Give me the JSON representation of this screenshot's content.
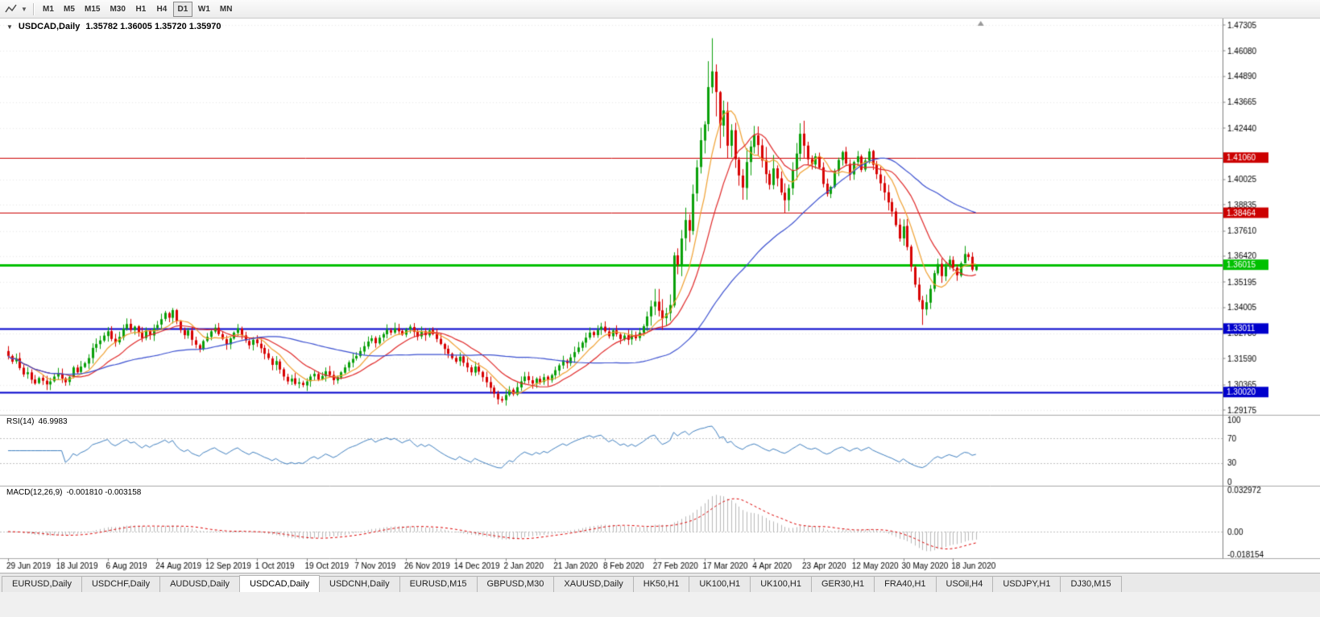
{
  "toolbar": {
    "timeframes": [
      {
        "label": "M1",
        "active": false
      },
      {
        "label": "M5",
        "active": false
      },
      {
        "label": "M15",
        "active": false
      },
      {
        "label": "M30",
        "active": false
      },
      {
        "label": "H1",
        "active": false
      },
      {
        "label": "H4",
        "active": false
      },
      {
        "label": "D1",
        "active": true
      },
      {
        "label": "W1",
        "active": false
      },
      {
        "label": "MN",
        "active": false
      }
    ]
  },
  "chart": {
    "symbol_period": "USDCAD,Daily",
    "ohlc_text": "1.35782 1.36005 1.35720 1.35970"
  },
  "rsi": {
    "name": "RSI(14)",
    "value": "46.9983"
  },
  "macd": {
    "name": "MACD(12,26,9)",
    "values": "-0.001810 -0.003158"
  },
  "tabs": [
    {
      "label": "EURUSD,Daily",
      "active": false
    },
    {
      "label": "USDCHF,Daily",
      "active": false
    },
    {
      "label": "AUDUSD,Daily",
      "active": false
    },
    {
      "label": "USDCAD,Daily",
      "active": true
    },
    {
      "label": "USDCNH,Daily",
      "active": false
    },
    {
      "label": "EURUSD,M15",
      "active": false
    },
    {
      "label": "GBPUSD,M30",
      "active": false
    },
    {
      "label": "XAUUSD,Daily",
      "active": false
    },
    {
      "label": "HK50,H1",
      "active": false
    },
    {
      "label": "UK100,H1",
      "active": false
    },
    {
      "label": "UK100,H1",
      "active": false
    },
    {
      "label": "GER30,H1",
      "active": false
    },
    {
      "label": "FRA40,H1",
      "active": false
    },
    {
      "label": "USOil,H4",
      "active": false
    },
    {
      "label": "USDJPY,H1",
      "active": false
    },
    {
      "label": "DJ30,M15",
      "active": false
    }
  ],
  "chart_data": {
    "type": "candlestick",
    "symbol": "USDCAD",
    "timeframe": "Daily",
    "ohlc_current": {
      "open": 1.35782,
      "high": 1.36005,
      "low": 1.3572,
      "close": 1.3597
    },
    "y_axis": {
      "min": 1.29175,
      "max": 1.47305
    },
    "y_ticks": [
      {
        "label": "1.47305",
        "price": 1.47305
      },
      {
        "label": "1.46080",
        "price": 1.4608
      },
      {
        "label": "1.44890",
        "price": 1.4489
      },
      {
        "label": "1.43665",
        "price": 1.43665
      },
      {
        "label": "1.42440",
        "price": 1.4244
      },
      {
        "label": "1.40025",
        "price": 1.40025
      },
      {
        "label": "1.38835",
        "price": 1.38835
      },
      {
        "label": "1.37610",
        "price": 1.3761
      },
      {
        "label": "1.36420",
        "price": 1.3642
      },
      {
        "label": "1.35195",
        "price": 1.35195
      },
      {
        "label": "1.34005",
        "price": 1.34005
      },
      {
        "label": "1.32780",
        "price": 1.3278
      },
      {
        "label": "1.31590",
        "price": 1.3159
      },
      {
        "label": "1.30365",
        "price": 1.30365
      },
      {
        "label": "1.29175",
        "price": 1.29175
      }
    ],
    "x_ticks": [
      "29 Jun 2019",
      "18 Jul 2019",
      "6 Aug 2019",
      "24 Aug 2019",
      "12 Sep 2019",
      "1 Oct 2019",
      "19 Oct 2019",
      "7 Nov 2019",
      "26 Nov 2019",
      "14 Dec 2019",
      "2 Jan 2020",
      "21 Jan 2020",
      "8 Feb 2020",
      "27 Feb 2020",
      "17 Mar 2020",
      "4 Apr 2020",
      "23 Apr 2020",
      "12 May 2020",
      "30 May 2020",
      "18 Jun 2020"
    ],
    "bars_per_tick": 13,
    "first_open": 1.3195,
    "closes": [
      1.3172,
      1.3145,
      1.316,
      1.3115,
      1.3085,
      1.3095,
      1.306,
      1.3042,
      1.3068,
      1.3055,
      1.3038,
      1.3052,
      1.3075,
      1.309,
      1.3065,
      1.3048,
      1.3072,
      1.3118,
      1.3095,
      1.3122,
      1.3138,
      1.3162,
      1.321,
      1.3228,
      1.3245,
      1.3268,
      1.3288,
      1.3252,
      1.3235,
      1.3262,
      1.33,
      1.3322,
      1.3295,
      1.331,
      1.3282,
      1.3256,
      1.3292,
      1.327,
      1.3302,
      1.3318,
      1.3345,
      1.3375,
      1.3352,
      1.3388,
      1.3335,
      1.3295,
      1.327,
      1.3292,
      1.3248,
      1.3225,
      1.3205,
      1.3242,
      1.3262,
      1.3288,
      1.3305,
      1.3275,
      1.3252,
      1.3228,
      1.3255,
      1.3282,
      1.3302,
      1.327,
      1.3245,
      1.3222,
      1.3248,
      1.3232,
      1.3208,
      1.3182,
      1.3162,
      1.313,
      1.3148,
      1.3108,
      1.3075,
      1.3052,
      1.3065,
      1.304,
      1.3048,
      1.3035,
      1.3052,
      1.3075,
      1.3088,
      1.306,
      1.3078,
      1.31,
      1.3082,
      1.3058,
      1.3072,
      1.3095,
      1.3118,
      1.3142,
      1.3158,
      1.3172,
      1.3195,
      1.3218,
      1.324,
      1.3255,
      1.3232,
      1.3258,
      1.3275,
      1.3295,
      1.3282,
      1.3302,
      1.3288,
      1.3272,
      1.3295,
      1.331,
      1.3285,
      1.3262,
      1.3288,
      1.327,
      1.3292,
      1.3275,
      1.3252,
      1.3228,
      1.3205,
      1.3182,
      1.3162,
      1.3145,
      1.3168,
      1.314,
      1.3118,
      1.3095,
      1.3122,
      1.3098,
      1.3072,
      1.3048,
      1.3022,
      1.2995,
      1.2968,
      1.2962,
      1.2988,
      1.3012,
      1.2992,
      1.3025,
      1.3052,
      1.3075,
      1.3058,
      1.3042,
      1.3065,
      1.3048,
      1.3072,
      1.3058,
      1.3082,
      1.3105,
      1.3128,
      1.3152,
      1.3138,
      1.3165,
      1.319,
      1.3212,
      1.3235,
      1.3258,
      1.3282,
      1.327,
      1.3295,
      1.331,
      1.3288,
      1.3265,
      1.3292,
      1.3275,
      1.3252,
      1.3268,
      1.3248,
      1.3272,
      1.3255,
      1.3282,
      1.3312,
      1.3358,
      1.3405,
      1.3428,
      1.3385,
      1.3348,
      1.3372,
      1.3412,
      1.3645,
      1.3602,
      1.3725,
      1.3812,
      1.3762,
      1.3935,
      1.406,
      1.4188,
      1.4262,
      1.4438,
      1.4512,
      1.4415,
      1.4258,
      1.4328,
      1.4162,
      1.4235,
      1.4098,
      1.4022,
      1.3965,
      1.4085,
      1.4158,
      1.4212,
      1.4165,
      1.4092,
      1.4028,
      1.3978,
      1.4055,
      1.4008,
      1.3942,
      1.3905,
      1.3962,
      1.4048,
      1.4125,
      1.4218,
      1.4162,
      1.4098,
      1.4075,
      1.4112,
      1.4058,
      1.3982,
      1.3935,
      1.3968,
      1.4042,
      1.4095,
      1.4132,
      1.4078,
      1.4025,
      1.4085,
      1.4112,
      1.4048,
      1.4092,
      1.4135,
      1.4072,
      1.4028,
      1.3985,
      1.3942,
      1.3895,
      1.3852,
      1.3788,
      1.3725,
      1.3782,
      1.3685,
      1.3592,
      1.3508,
      1.3435,
      1.3392,
      1.3425,
      1.3488,
      1.3562,
      1.3605,
      1.3548,
      1.3592,
      1.3625,
      1.3588,
      1.3552,
      1.3608,
      1.3652,
      1.3638,
      1.3578,
      1.3597
    ],
    "wick_overrides": {
      "43": [
        1.3398,
        1.3325
      ],
      "129": [
        1.2982,
        1.2952
      ],
      "174": [
        1.366,
        1.34
      ],
      "183": [
        1.456,
        1.423
      ],
      "184": [
        1.4668,
        1.4408
      ],
      "185": [
        1.4545,
        1.43
      ],
      "186": [
        1.442,
        1.415
      ],
      "207": [
        1.4268,
        1.409
      ],
      "239": [
        1.3455,
        1.3318
      ],
      "250": [
        1.369,
        1.3628
      ],
      "253": [
        1.3601,
        1.3572
      ]
    },
    "candle_colors": {
      "up": "#0aa00a",
      "down": "#d80000"
    },
    "levels": [
      {
        "price": 1.4106,
        "label": "1.41060",
        "color": "#cc0000",
        "line_width": 1
      },
      {
        "price": 1.38464,
        "label": "1.38464",
        "color": "#cc0000",
        "line_width": 1
      },
      {
        "price": 1.36015,
        "label": "1.36015",
        "color": "#00c000",
        "line_width": 3
      },
      {
        "price": 1.33011,
        "label": "1.33011",
        "color": "#0000cc",
        "line_width": 2
      },
      {
        "price": 1.3002,
        "label": "1.30020",
        "color": "#0000cc",
        "line_width": 2
      }
    ],
    "moving_averages": [
      {
        "period": 8,
        "color": "#f0a030"
      },
      {
        "period": 16,
        "color": "#e02828"
      },
      {
        "period": 50,
        "color": "#3a4fd0"
      }
    ],
    "rsi": {
      "period": 14,
      "current": 46.9983,
      "color": "#4080c0",
      "guide_levels": [
        70,
        30
      ],
      "scale": [
        {
          "label": "100",
          "value": 100
        },
        {
          "label": "70",
          "value": 70
        },
        {
          "label": "30",
          "value": 30
        },
        {
          "label": "0",
          "value": 0
        }
      ]
    },
    "macd": {
      "fast": 12,
      "slow": 26,
      "signal": 9,
      "current_main": -0.00181,
      "current_signal": -0.003158,
      "hist_color": "#b8b8b8",
      "signal_color": "#dd0000",
      "scale": [
        {
          "label": "0.032972",
          "value": 0.032972
        },
        {
          "label": "0.00",
          "value": 0
        },
        {
          "label": "-0.018154",
          "value": -0.018154
        }
      ]
    }
  }
}
